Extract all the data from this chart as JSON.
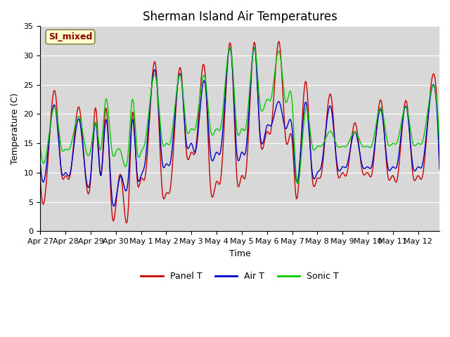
{
  "title": "Sherman Island Air Temperatures",
  "xlabel": "Time",
  "ylabel": "Temperature (C)",
  "ylim": [
    0,
    35
  ],
  "yticks": [
    0,
    5,
    10,
    15,
    20,
    25,
    30,
    35
  ],
  "date_labels": [
    "Apr 27",
    "Apr 28",
    "Apr 29",
    "Apr 30",
    "May 1",
    "May 2",
    "May 3",
    "May 4",
    "May 5",
    "May 6",
    "May 7",
    "May 8",
    "May 9",
    "May 10",
    "May 11",
    "May 12"
  ],
  "panel_t_color": "#cc0000",
  "air_t_color": "#0000cc",
  "sonic_t_color": "#00cc00",
  "bg_color": "#d8d8d8",
  "legend_items": [
    "Panel T",
    "Air T",
    "Sonic T"
  ],
  "annotation_text": "SI_mixed",
  "annotation_bg": "#ffffcc",
  "annotation_border": "#888855",
  "title_fontsize": 12,
  "axis_fontsize": 9,
  "tick_fontsize": 8
}
